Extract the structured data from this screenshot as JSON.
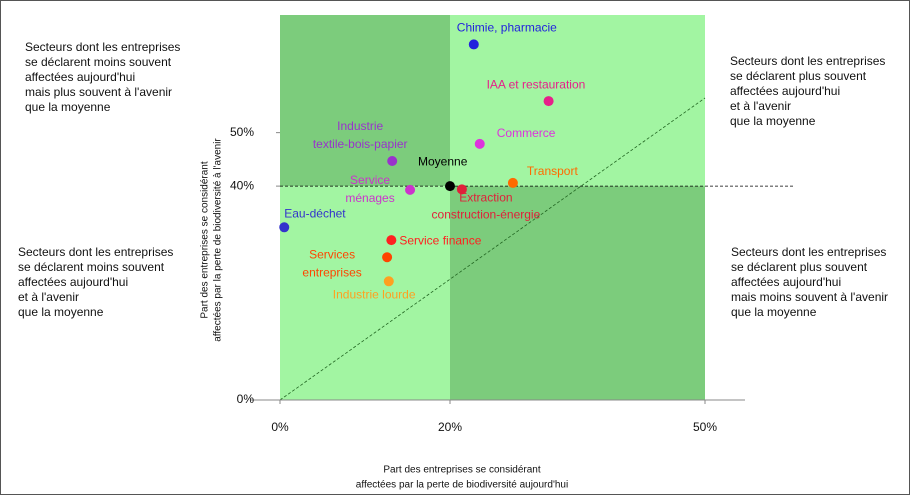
{
  "chart_data": {
    "type": "scatter",
    "xlabel": [
      "Part des entreprises se considérant",
      "affectées par la perte de biodiversité aujourd'hui"
    ],
    "ylabel": [
      "Part des entreprises se considérant",
      "affectées par la perte de biodiversité à l'avenir"
    ],
    "xlim": [
      0,
      50
    ],
    "ylim": [
      0,
      72
    ],
    "xticks": [
      {
        "value": 0,
        "label": "0%"
      },
      {
        "value": 20,
        "label": "20%"
      },
      {
        "value": 50,
        "label": "50%"
      }
    ],
    "yticks": [
      {
        "value": 0,
        "label": "0%"
      },
      {
        "value": 40,
        "label": "40%"
      },
      {
        "value": 50,
        "label": "50%"
      }
    ],
    "points": [
      {
        "name": [
          "Chimie, pharmacie"
        ],
        "x": 22.8,
        "y": 66.5,
        "color": "#2222dd"
      },
      {
        "name": [
          "IAA et restauration"
        ],
        "x": 31.6,
        "y": 55.9,
        "color": "#e6208a"
      },
      {
        "name": [
          "Commerce"
        ],
        "x": 23.5,
        "y": 47.9,
        "color": "#dd33dd"
      },
      {
        "name": [
          "Industrie",
          "textile-bois-papier"
        ],
        "x": 13.2,
        "y": 44.7,
        "color": "#9933cc"
      },
      {
        "name": [
          "Moyenne"
        ],
        "x": 20,
        "y": 40,
        "color": "#000000"
      },
      {
        "name": [
          "Transport"
        ],
        "x": 27.4,
        "y": 40.6,
        "color": "#ff6a00"
      },
      {
        "name": [
          "Service",
          "ménages"
        ],
        "x": 15.3,
        "y": 39.3,
        "color": "#cc33cc"
      },
      {
        "name": [
          "Extraction",
          "construction-énergie"
        ],
        "x": 21.4,
        "y": 39.4,
        "color": "#e0203a"
      },
      {
        "name": [
          "Eau-déchet"
        ],
        "x": 0.5,
        "y": 32.3,
        "color": "#3333cc"
      },
      {
        "name": [
          "Service finance"
        ],
        "x": 13.1,
        "y": 29.9,
        "color": "#ff2020"
      },
      {
        "name": [
          "Services",
          "entreprises"
        ],
        "x": 12.6,
        "y": 26.7,
        "color": "#ff4500"
      },
      {
        "name": [
          "Industrie lourde"
        ],
        "x": 12.8,
        "y": 22.2,
        "color": "#ffa020"
      }
    ],
    "annotations": [
      [
        "Secteurs dont les entreprises",
        "se déclarent moins souvent",
        "affectées aujourd'hui",
        "mais plus souvent à l'avenir",
        "que la moyenne"
      ],
      [
        "Secteurs dont les entreprises",
        "se déclarent plus souvent",
        "affectées aujourd'hui",
        "et à l'avenir",
        "que la moyenne"
      ],
      [
        "Secteurs dont les entreprises",
        "se déclarent moins souvent",
        "affectées aujourd'hui",
        "et à l'avenir",
        "que la moyenne"
      ],
      [
        "Secteurs dont les entreprises",
        "se déclarent plus souvent",
        "affectées aujourd'hui",
        "mais moins souvent à l'avenir",
        "que la moyenne"
      ]
    ]
  }
}
